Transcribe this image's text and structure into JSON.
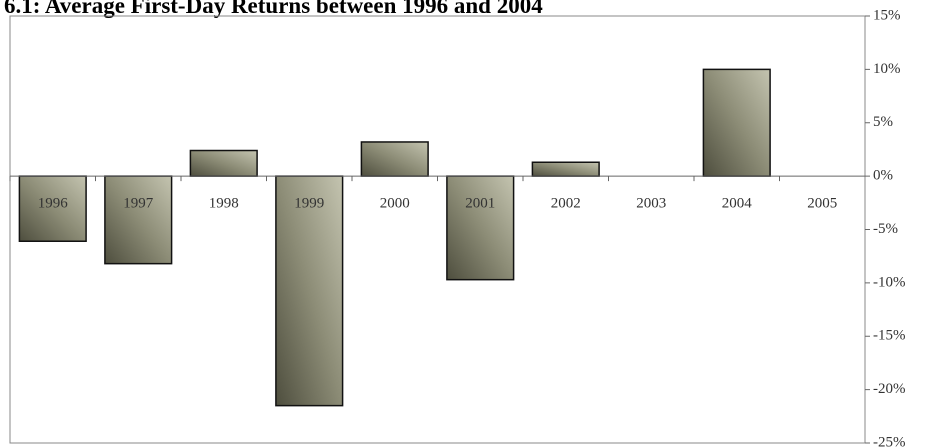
{
  "chart_data": {
    "type": "bar",
    "title": "6.1: Average First-Day Returns between 1996 and 2004",
    "categories": [
      "1996",
      "1997",
      "1998",
      "1999",
      "2000",
      "2001",
      "2002",
      "2003",
      "2004",
      "2005"
    ],
    "values": [
      -6.1,
      -8.2,
      2.4,
      -21.5,
      3.2,
      -9.7,
      1.3,
      0,
      10.0,
      0
    ],
    "color": "#8c8c76",
    "ylim": [
      -25,
      15
    ],
    "yticks": [
      {
        "value": 15,
        "label": "15%"
      },
      {
        "value": 10,
        "label": "10%"
      },
      {
        "value": 5,
        "label": "5%"
      },
      {
        "value": 0,
        "label": "0%"
      },
      {
        "value": -5,
        "label": "-5%"
      },
      {
        "value": -10,
        "label": "-10%"
      },
      {
        "value": -15,
        "label": "-15%"
      },
      {
        "value": -20,
        "label": "-20%"
      },
      {
        "value": -25,
        "label": "-25%"
      }
    ],
    "grid": false
  }
}
